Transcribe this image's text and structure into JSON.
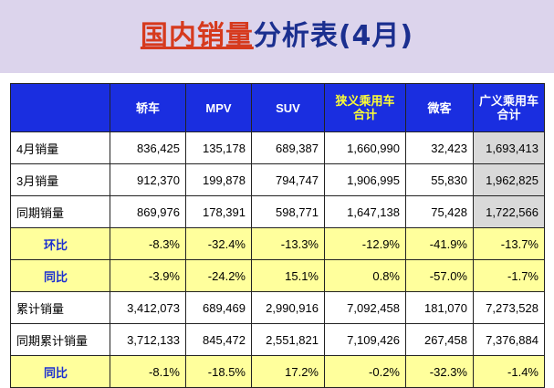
{
  "title": {
    "highlight": "国内销量",
    "rest": "分析表(4月)"
  },
  "columns": [
    "轿车",
    "MPV",
    "SUV",
    "狭义乘用车合计",
    "微客",
    "广义乘用车合计"
  ],
  "rows": [
    {
      "label": "4月销量",
      "type": "value",
      "cells": [
        "836,425",
        "135,178",
        "689,387",
        "1,660,990",
        "32,423",
        "1,693,413"
      ]
    },
    {
      "label": "3月销量",
      "type": "value",
      "cells": [
        "912,370",
        "199,878",
        "794,747",
        "1,906,995",
        "55,830",
        "1,962,825"
      ]
    },
    {
      "label": "同期销量",
      "type": "value",
      "cells": [
        "869,976",
        "178,391",
        "598,771",
        "1,647,138",
        "75,428",
        "1,722,566"
      ]
    },
    {
      "label": "环比",
      "type": "ratio",
      "cells": [
        "-8.3%",
        "-32.4%",
        "-13.3%",
        "-12.9%",
        "-41.9%",
        "-13.7%"
      ],
      "colors": [
        "green",
        "green",
        "green",
        "green",
        "green",
        "green"
      ]
    },
    {
      "label": "同比",
      "type": "ratio",
      "cells": [
        "-3.9%",
        "-24.2%",
        "15.1%",
        "0.8%",
        "-57.0%",
        "-1.7%"
      ],
      "colors": [
        "green",
        "green",
        "red",
        "red",
        "green",
        "green"
      ]
    },
    {
      "label": "累计销量",
      "type": "value",
      "cells": [
        "3,412,073",
        "689,469",
        "2,990,916",
        "7,092,458",
        "181,070",
        "7,273,528"
      ]
    },
    {
      "label": "同期累计销量",
      "type": "value",
      "cells": [
        "3,712,133",
        "845,472",
        "2,551,821",
        "7,109,426",
        "267,458",
        "7,376,884"
      ]
    },
    {
      "label": "同比",
      "type": "ratio",
      "cells": [
        "-8.1%",
        "-18.5%",
        "17.2%",
        "-0.2%",
        "-32.3%",
        "-1.4%"
      ],
      "colors": [
        "green",
        "green",
        "red",
        "green",
        "green",
        "green"
      ]
    }
  ],
  "colors": {
    "header_bg": "#1a2ee0",
    "ratio_bg": "#ffff9c",
    "gray_cell": "#d9d9d9",
    "positive": "#e00000",
    "negative": "#0a9a1e"
  }
}
